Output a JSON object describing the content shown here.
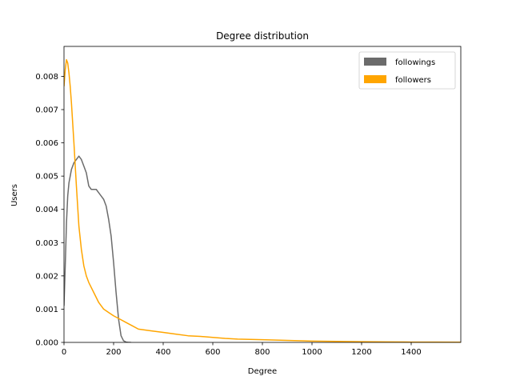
{
  "chart_data": {
    "type": "line",
    "title": "Degree distribution",
    "xlabel": "Degree",
    "ylabel": "Users",
    "xlim": [
      0,
      1600
    ],
    "ylim": [
      0,
      0.0089
    ],
    "xticks": [
      0,
      200,
      400,
      600,
      800,
      1000,
      1200,
      1400
    ],
    "yticks": [
      0.0,
      0.001,
      0.002,
      0.003,
      0.004,
      0.005,
      0.006,
      0.007,
      0.008
    ],
    "ytick_labels": [
      "0.000",
      "0.001",
      "0.002",
      "0.003",
      "0.004",
      "0.005",
      "0.006",
      "0.007",
      "0.008"
    ],
    "grid": false,
    "legend_position": "top-right",
    "series": [
      {
        "name": "followings",
        "color": "#6b6b6b",
        "x": [
          0,
          5,
          10,
          15,
          20,
          30,
          40,
          50,
          60,
          70,
          80,
          90,
          100,
          110,
          120,
          130,
          140,
          150,
          160,
          170,
          180,
          190,
          200,
          210,
          220,
          230,
          240,
          250,
          260,
          270
        ],
        "y": [
          0.0011,
          0.0023,
          0.0036,
          0.0044,
          0.0048,
          0.0052,
          0.0054,
          0.0055,
          0.0056,
          0.0055,
          0.0053,
          0.0051,
          0.0047,
          0.0046,
          0.0046,
          0.0046,
          0.0045,
          0.0044,
          0.0043,
          0.0041,
          0.0037,
          0.0032,
          0.0024,
          0.0015,
          0.0007,
          0.0002,
          5e-05,
          1e-05,
          0.0,
          0.0
        ]
      },
      {
        "name": "followers",
        "color": "#ffa500",
        "x": [
          0,
          5,
          10,
          15,
          20,
          25,
          30,
          40,
          50,
          60,
          70,
          80,
          90,
          100,
          120,
          140,
          160,
          180,
          200,
          225,
          250,
          275,
          300,
          350,
          400,
          450,
          500,
          550,
          600,
          650,
          700,
          800,
          900,
          1000,
          1100,
          1200,
          1300,
          1400,
          1500,
          1600
        ],
        "y": [
          0.0077,
          0.0082,
          0.0085,
          0.0084,
          0.0081,
          0.0077,
          0.0072,
          0.006,
          0.0047,
          0.0035,
          0.0028,
          0.0023,
          0.002,
          0.0018,
          0.0015,
          0.0012,
          0.001,
          0.0009,
          0.0008,
          0.0007,
          0.0006,
          0.0005,
          0.0004,
          0.00035,
          0.0003,
          0.00025,
          0.0002,
          0.00018,
          0.00015,
          0.00012,
          0.0001,
          8e-05,
          6e-05,
          4e-05,
          3e-05,
          2e-05,
          1.5e-05,
          1e-05,
          8e-06,
          5e-06
        ]
      }
    ]
  }
}
